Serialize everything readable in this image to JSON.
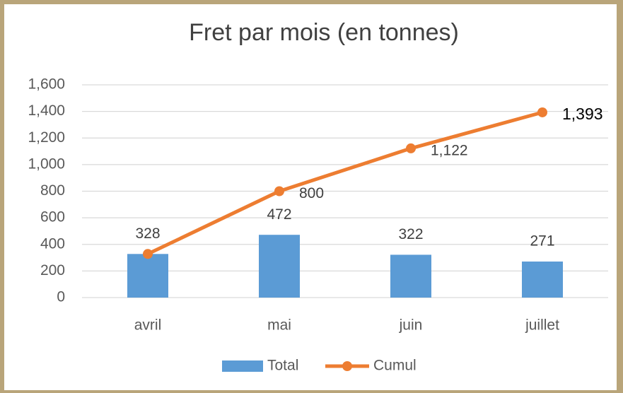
{
  "chart_data": {
    "type": "combo",
    "title": "Fret par mois (en tonnes)",
    "categories": [
      "avril",
      "mai",
      "juin",
      "juillet"
    ],
    "series": [
      {
        "name": "Total",
        "type": "bar",
        "color": "#5b9bd5",
        "values": [
          328,
          472,
          322,
          271
        ]
      },
      {
        "name": "Cumul",
        "type": "line",
        "color": "#ed7d31",
        "values": [
          328,
          800,
          1122,
          1393
        ],
        "value_labels": [
          null,
          "800",
          "1,122",
          "1,393"
        ]
      }
    ],
    "ylim": [
      0,
      1600
    ],
    "yticks": [
      0,
      200,
      400,
      600,
      800,
      {
        "value": 1000,
        "label": "1,000"
      },
      {
        "value": 1200,
        "label": "1,200"
      },
      {
        "value": 1400,
        "label": "1,400"
      },
      {
        "value": 1600,
        "label": "1,600"
      }
    ],
    "grid": true,
    "legend": "bottom"
  }
}
